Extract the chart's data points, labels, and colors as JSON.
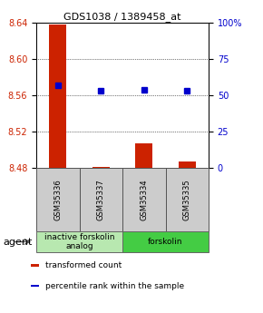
{
  "title": "GDS1038 / 1389458_at",
  "samples": [
    "GSM35336",
    "GSM35337",
    "GSM35334",
    "GSM35335"
  ],
  "bar_values": [
    8.638,
    8.481,
    8.507,
    8.487
  ],
  "bar_base": 8.48,
  "blue_dot_values": [
    57,
    53,
    54,
    53
  ],
  "ylim_left": [
    8.48,
    8.64
  ],
  "ylim_right": [
    0,
    100
  ],
  "yticks_left": [
    8.48,
    8.52,
    8.56,
    8.6,
    8.64
  ],
  "yticks_right": [
    0,
    25,
    50,
    75,
    100
  ],
  "ytick_labels_left": [
    "8.48",
    "8.52",
    "8.56",
    "8.60",
    "8.64"
  ],
  "ytick_labels_right": [
    "0",
    "25",
    "50",
    "75",
    "100%"
  ],
  "bar_color": "#cc2200",
  "dot_color": "#0000cc",
  "groups": [
    {
      "label": "inactive forskolin\nanalog",
      "samples": [
        0,
        1
      ],
      "color": "#b8e8b0",
      "border": "#666666"
    },
    {
      "label": "forskolin",
      "samples": [
        2,
        3
      ],
      "color": "#44cc44",
      "border": "#666666"
    }
  ],
  "agent_label": "agent",
  "legend_items": [
    {
      "color": "#cc2200",
      "label": "transformed count"
    },
    {
      "color": "#0000cc",
      "label": "percentile rank within the sample"
    }
  ],
  "sample_box_color": "#cccccc",
  "sample_box_border": "#555555"
}
